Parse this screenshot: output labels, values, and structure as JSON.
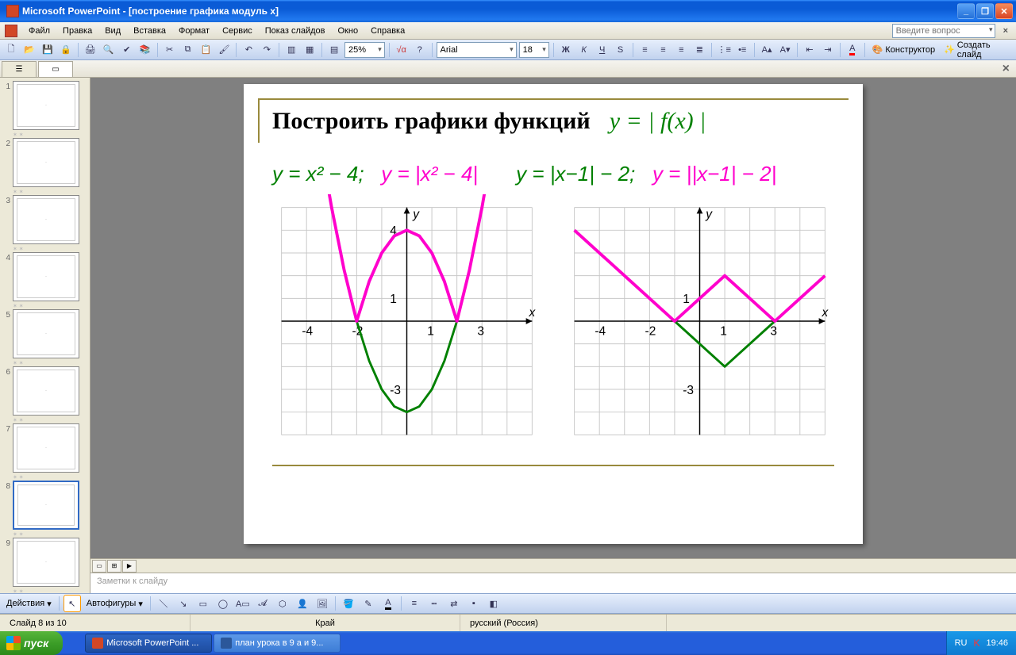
{
  "app": {
    "title": "Microsoft PowerPoint - [построение графика модуль x]"
  },
  "menu": {
    "items": [
      "Файл",
      "Правка",
      "Вид",
      "Вставка",
      "Формат",
      "Сервис",
      "Показ слайдов",
      "Окно",
      "Справка"
    ],
    "help_placeholder": "Введите вопрос"
  },
  "toolbar1": {
    "zoom": "25%",
    "font": "Arial",
    "size": "18",
    "designer": "Конструктор",
    "newslide": "Создать слайд"
  },
  "outline": {
    "tab1": "☰",
    "tab2": "▭",
    "slides": 10,
    "selected": 8
  },
  "slide": {
    "title": "Построить графики функций",
    "title_formula": "y = | f(x) |",
    "eq_left_a": "y = x² − 4;",
    "eq_left_b": "y = |x² − 4|",
    "eq_right_a": "y = |x−1| − 2;",
    "eq_right_b": "y = ||x−1| − 2|",
    "chart1": {
      "type": "line-plot",
      "xlim": [
        -5,
        5
      ],
      "ylim": [
        -5,
        5
      ],
      "xticks_labeled": {
        "-4": -4,
        "-2": -2,
        "1": 1,
        "3": 3
      },
      "yticks_labeled": {
        "4": 4,
        "1": 1,
        "-3": -3
      },
      "xlabel": "x",
      "ylabel": "y",
      "grid_color": "#c8c8c8",
      "axis_color": "#000000",
      "series": [
        {
          "name": "green_parabola_neg",
          "color": "#008000",
          "stroke_width": 3,
          "points": [
            [
              -2,
              0
            ],
            [
              -1.5,
              -1.75
            ],
            [
              -1,
              -3
            ],
            [
              -0.5,
              -3.75
            ],
            [
              0,
              -4
            ],
            [
              0.5,
              -3.75
            ],
            [
              1,
              -3
            ],
            [
              1.5,
              -1.75
            ],
            [
              2,
              0
            ]
          ]
        },
        {
          "name": "pink_abs",
          "color": "#ff00cc",
          "stroke_width": 4,
          "points": [
            [
              -3.3,
              6.9
            ],
            [
              -3,
              5
            ],
            [
              -2.5,
              2.25
            ],
            [
              -2,
              0
            ],
            [
              -1.5,
              1.75
            ],
            [
              -1,
              3
            ],
            [
              -0.5,
              3.75
            ],
            [
              0,
              4
            ],
            [
              0.5,
              3.75
            ],
            [
              1,
              3
            ],
            [
              1.5,
              1.75
            ],
            [
              2,
              0
            ],
            [
              2.5,
              2.25
            ],
            [
              3,
              5
            ],
            [
              3.3,
              6.9
            ]
          ]
        }
      ]
    },
    "chart2": {
      "type": "line-plot",
      "xlim": [
        -5,
        5
      ],
      "ylim": [
        -5,
        5
      ],
      "xticks_labeled": {
        "-4": -4,
        "-2": -2,
        "1": 1,
        "3": 3
      },
      "yticks_labeled": {
        "1": 1,
        "-3": -3
      },
      "xlabel": "x",
      "ylabel": "y",
      "grid_color": "#c8c8c8",
      "axis_color": "#000000",
      "series": [
        {
          "name": "green_v_neg",
          "color": "#008000",
          "stroke_width": 3,
          "points": [
            [
              -1,
              0
            ],
            [
              1,
              -2
            ],
            [
              3,
              0
            ]
          ]
        },
        {
          "name": "pink_outer_abs",
          "color": "#ff00cc",
          "stroke_width": 4,
          "points": [
            [
              -5,
              4
            ],
            [
              -1,
              0
            ],
            [
              1,
              2
            ],
            [
              3,
              0
            ],
            [
              5,
              2
            ]
          ]
        }
      ]
    }
  },
  "notes": {
    "placeholder": "Заметки к слайду"
  },
  "drawbar": {
    "actions": "Действия",
    "autoshapes": "Автофигуры"
  },
  "status": {
    "slide": "Слайд 8 из 10",
    "layout": "Край",
    "lang": "русский (Россия)"
  },
  "taskbar": {
    "start": "пуск",
    "buttons": [
      {
        "label": "Microsoft PowerPoint ...",
        "icon_color": "#d24726",
        "active": true
      },
      {
        "label": "план урока в 9 а и 9...",
        "icon_color": "#2b579a",
        "active": false
      }
    ],
    "tray": {
      "lang": "RU",
      "time": "19:46"
    }
  },
  "colors": {
    "accent_olive": "#998a3c",
    "green": "#008000",
    "pink": "#ff00cc"
  }
}
